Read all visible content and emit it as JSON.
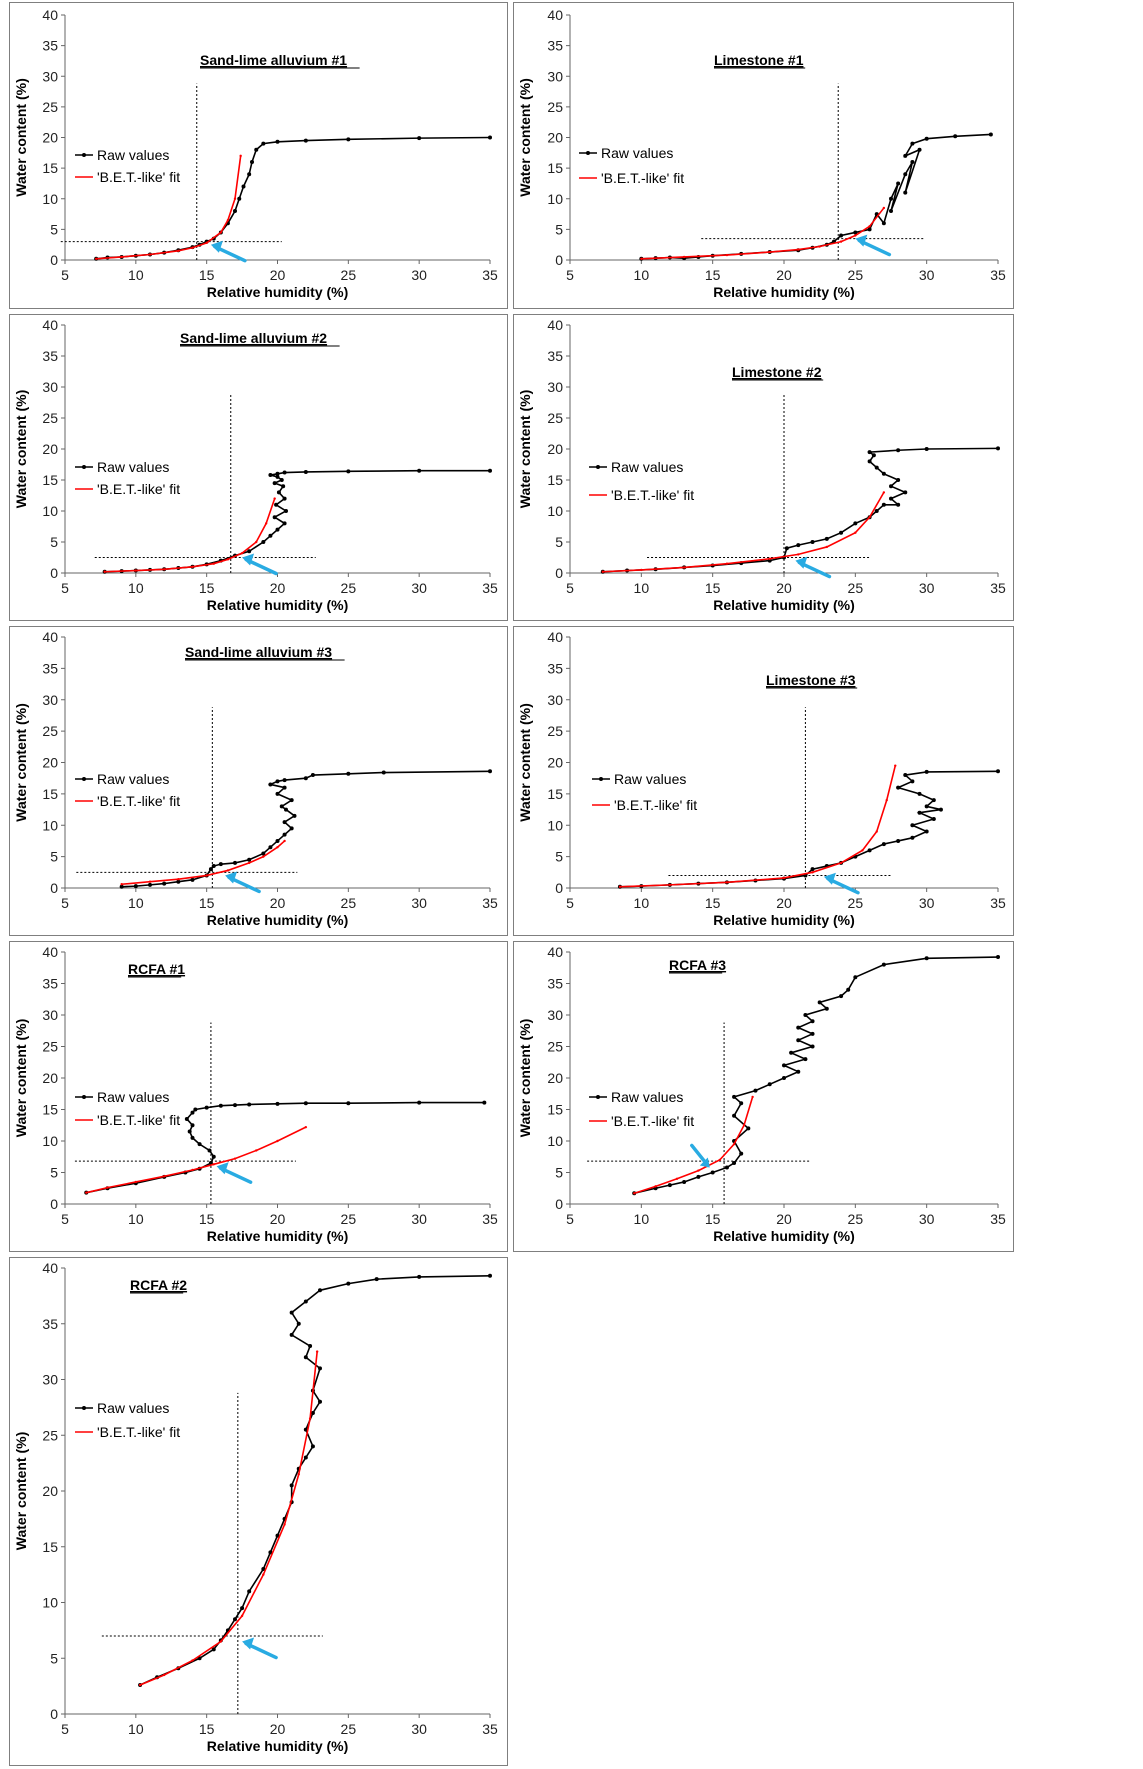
{
  "common": {
    "xlabel": "Relative humidity (%)",
    "ylabel": "Water content (%)",
    "legend": [
      "Raw values",
      "'B.E.T.-like' fit"
    ],
    "raw_color": "#000000",
    "fit_color": "#ff0000",
    "arrow_color": "#29abe2"
  },
  "chart_data": [
    {
      "type": "line",
      "title": "Sand-lime alluvium #1",
      "xlabel": "Relative humidity (%)",
      "ylabel": "Water content (%)",
      "xlim": [
        5,
        35
      ],
      "ylim": [
        0,
        40
      ],
      "xticks": [
        "5",
        "10",
        "15",
        "20",
        "25",
        "30",
        "35"
      ],
      "yticks": [
        "0",
        "5",
        "10",
        "15",
        "20",
        "25",
        "30",
        "35",
        "40"
      ],
      "series": [
        {
          "name": "Raw values",
          "x": [
            7.2,
            8,
            9,
            10,
            11,
            12,
            13,
            14,
            14.5,
            15,
            15.5,
            16,
            16.5,
            17,
            17.3,
            17.6,
            18,
            18.2,
            18.5,
            19,
            20,
            22,
            25,
            30,
            35
          ],
          "y": [
            0.2,
            0.4,
            0.5,
            0.7,
            0.9,
            1.2,
            1.6,
            2.1,
            2.5,
            3,
            3.5,
            4.5,
            6,
            8,
            10,
            12,
            14,
            16,
            18,
            19,
            19.3,
            19.5,
            19.7,
            19.9,
            20
          ]
        },
        {
          "name": "'B.E.T.-like' fit",
          "x": [
            7.2,
            9,
            11,
            13,
            14,
            15,
            16,
            16.5,
            17,
            17.4
          ],
          "y": [
            0.2,
            0.5,
            0.9,
            1.5,
            2,
            2.8,
            4.5,
            6.5,
            10,
            17
          ]
        }
      ],
      "refline_x": 14.3,
      "refline_y": 3,
      "arrow_target": [
        15.3,
        2.5
      ]
    },
    {
      "type": "line",
      "title": "Limestone #1",
      "xlabel": "Relative humidity (%)",
      "ylabel": "Water content (%)",
      "xlim": [
        5,
        35
      ],
      "ylim": [
        0,
        40
      ],
      "xticks": [
        "5",
        "10",
        "15",
        "20",
        "25",
        "30",
        "35"
      ],
      "yticks": [
        "0",
        "5",
        "10",
        "15",
        "20",
        "25",
        "30",
        "35",
        "40"
      ],
      "series": [
        {
          "name": "Raw values",
          "x": [
            10,
            11,
            12,
            13,
            14,
            15,
            17,
            19,
            21,
            22,
            23,
            23.5,
            24,
            25,
            26,
            26.5,
            27,
            27.5,
            28,
            27.5,
            28.5,
            29,
            28.5,
            29.5,
            28.5,
            29,
            30,
            32,
            34.5
          ],
          "y": [
            0.2,
            0.3,
            0.4,
            0.3,
            0.5,
            0.7,
            1,
            1.3,
            1.6,
            2,
            2.5,
            3,
            4,
            4.5,
            5,
            7.5,
            6,
            10,
            12.5,
            8,
            14,
            16,
            11,
            18,
            17,
            19,
            19.8,
            20.2,
            20.5
          ]
        },
        {
          "name": "'B.E.T.-like' fit",
          "x": [
            10,
            13,
            16,
            19,
            21,
            22.5,
            24,
            25,
            26,
            27
          ],
          "y": [
            0.2,
            0.5,
            0.8,
            1.3,
            1.7,
            2.2,
            3,
            4,
            5.5,
            8.5
          ]
        }
      ],
      "refline_x": 23.8,
      "refline_y": 3.5,
      "arrow_target": [
        25,
        3.5
      ]
    },
    {
      "type": "line",
      "title": "Sand-lime alluvium #2",
      "xlabel": "Relative humidity (%)",
      "ylabel": "Water content (%)",
      "xlim": [
        5,
        35
      ],
      "ylim": [
        0,
        40
      ],
      "xticks": [
        "5",
        "10",
        "15",
        "20",
        "25",
        "30",
        "35"
      ],
      "yticks": [
        "0",
        "5",
        "10",
        "15",
        "20",
        "25",
        "30",
        "35",
        "40"
      ],
      "series": [
        {
          "name": "Raw values",
          "x": [
            7.8,
            9,
            10,
            11,
            12,
            13,
            14,
            15,
            16,
            17,
            18,
            19,
            19.5,
            20,
            20.5,
            19.8,
            20.6,
            19.9,
            20.5,
            20.1,
            20.4,
            19.8,
            20.3,
            20,
            19.5,
            20,
            20.5,
            22,
            25,
            30,
            35
          ],
          "y": [
            0.2,
            0.3,
            0.4,
            0.5,
            0.6,
            0.8,
            1,
            1.4,
            2,
            2.8,
            3.5,
            5,
            6,
            7,
            8,
            9,
            10,
            11,
            12,
            13,
            14,
            14.5,
            15,
            15.5,
            15.8,
            16,
            16.2,
            16.3,
            16.4,
            16.5,
            16.5
          ]
        },
        {
          "name": "'B.E.T.-like' fit",
          "x": [
            7.8,
            10,
            12,
            14,
            15.5,
            16.5,
            17.5,
            18.5,
            19.2,
            19.8
          ],
          "y": [
            0.2,
            0.4,
            0.6,
            1,
            1.5,
            2.2,
            3.2,
            5,
            8,
            12
          ]
        }
      ],
      "refline_x": 16.7,
      "refline_y": 2.5,
      "arrow_target": [
        17.5,
        2.5
      ]
    },
    {
      "type": "line",
      "title": "Limestone #2",
      "xlabel": "Relative humidity (%)",
      "ylabel": "Water content (%)",
      "xlim": [
        5,
        35
      ],
      "ylim": [
        0,
        40
      ],
      "xticks": [
        "5",
        "10",
        "15",
        "20",
        "25",
        "30",
        "35"
      ],
      "yticks": [
        "0",
        "5",
        "10",
        "15",
        "20",
        "25",
        "30",
        "35",
        "40"
      ],
      "series": [
        {
          "name": "Raw values",
          "x": [
            7.3,
            9,
            11,
            13,
            15,
            17,
            19,
            20,
            20.2,
            21,
            22,
            23,
            24,
            25,
            26,
            26.5,
            27,
            28,
            27.5,
            28.5,
            27.5,
            28,
            27,
            26.5,
            26,
            26.3,
            26,
            28,
            30,
            35
          ],
          "y": [
            0.2,
            0.4,
            0.6,
            0.9,
            1.2,
            1.6,
            2,
            2.5,
            4,
            4.5,
            5,
            5.5,
            6.5,
            8,
            9,
            10,
            11,
            11,
            12,
            13,
            14,
            15,
            16,
            17,
            18,
            19,
            19.5,
            19.8,
            20,
            20.1
          ]
        },
        {
          "name": "'B.E.T.-like' fit",
          "x": [
            7.3,
            10,
            13,
            16,
            19,
            21,
            23,
            25,
            26,
            27
          ],
          "y": [
            0.2,
            0.5,
            0.9,
            1.5,
            2.3,
            3,
            4.2,
            6.5,
            9,
            13
          ]
        }
      ],
      "refline_x": 20,
      "refline_y": 2.5,
      "arrow_target": [
        20.8,
        2
      ]
    },
    {
      "type": "line",
      "title": "Sand-lime alluvium #3",
      "xlabel": "Relative humidity (%)",
      "ylabel": "Water content (%)",
      "xlim": [
        5,
        35
      ],
      "ylim": [
        0,
        40
      ],
      "xticks": [
        "5",
        "10",
        "15",
        "20",
        "25",
        "30",
        "35"
      ],
      "yticks": [
        "0",
        "5",
        "10",
        "15",
        "20",
        "25",
        "30",
        "35",
        "40"
      ],
      "series": [
        {
          "name": "Raw values",
          "x": [
            9,
            10,
            11,
            12,
            13,
            14,
            15,
            15.3,
            15.5,
            16,
            17,
            18,
            19,
            19.5,
            20,
            20.5,
            21,
            20.5,
            21.2,
            20.6,
            20.3,
            21,
            20,
            20.5,
            19.5,
            20,
            20.5,
            22,
            22.5,
            25,
            27.5,
            35
          ],
          "y": [
            0.2,
            0.3,
            0.5,
            0.7,
            1,
            1.3,
            2,
            3,
            3.5,
            3.8,
            4,
            4.5,
            5.5,
            6.5,
            7.5,
            8.5,
            9.5,
            10.5,
            11.5,
            12.5,
            13,
            14,
            15,
            16,
            16.5,
            17,
            17.2,
            17.5,
            18,
            18.2,
            18.4,
            18.6
          ]
        },
        {
          "name": "'B.E.T.-like' fit",
          "x": [
            9,
            11,
            13,
            15,
            16.5,
            18,
            19,
            20,
            20.5
          ],
          "y": [
            0.6,
            1,
            1.4,
            2,
            2.8,
            4,
            5,
            6.5,
            7.5
          ]
        }
      ],
      "refline_x": 15.4,
      "refline_y": 2.5,
      "arrow_target": [
        16.3,
        2
      ]
    },
    {
      "type": "line",
      "title": "Limestone #3",
      "xlabel": "Relative humidity (%)",
      "ylabel": "Water content (%)",
      "xlim": [
        5,
        35
      ],
      "ylim": [
        0,
        40
      ],
      "xticks": [
        "5",
        "10",
        "15",
        "20",
        "25",
        "30",
        "35"
      ],
      "yticks": [
        "0",
        "5",
        "10",
        "15",
        "20",
        "25",
        "30",
        "35",
        "40"
      ],
      "series": [
        {
          "name": "Raw values",
          "x": [
            8.5,
            10,
            12,
            14,
            16,
            18,
            20,
            21.5,
            22,
            23,
            24,
            25,
            26,
            27,
            28,
            29,
            30,
            29,
            30.5,
            29.5,
            31,
            30,
            30.5,
            29.5,
            28,
            29,
            28.5,
            30,
            35
          ],
          "y": [
            0.2,
            0.3,
            0.5,
            0.7,
            0.9,
            1.2,
            1.5,
            2,
            3,
            3.5,
            4,
            5,
            6,
            7,
            7.5,
            8,
            9,
            10,
            11,
            12,
            12.5,
            13,
            14,
            15,
            16,
            17,
            18,
            18.5,
            18.6
          ]
        },
        {
          "name": "'B.E.T.-like' fit",
          "x": [
            8.5,
            12,
            16,
            20,
            22,
            24,
            25.5,
            26.5,
            27.2,
            27.8
          ],
          "y": [
            0.2,
            0.5,
            0.9,
            1.6,
            2.5,
            4,
            6,
            9,
            14,
            19.5
          ]
        }
      ],
      "refline_x": 21.5,
      "refline_y": 2,
      "arrow_target": [
        22.8,
        1.8
      ]
    },
    {
      "type": "line",
      "title": "RCFA #1",
      "xlabel": "Relative humidity (%)",
      "ylabel": "Water content (%)",
      "xlim": [
        5,
        35
      ],
      "ylim": [
        0,
        40
      ],
      "xticks": [
        "5",
        "10",
        "15",
        "20",
        "25",
        "30",
        "35"
      ],
      "yticks": [
        "0",
        "5",
        "10",
        "15",
        "20",
        "25",
        "30",
        "35",
        "40"
      ],
      "series": [
        {
          "name": "Raw values",
          "x": [
            6.5,
            8,
            10,
            12,
            13.5,
            14.5,
            15.3,
            15.5,
            15.2,
            14.5,
            14,
            13.8,
            14,
            13.6,
            14,
            14.2,
            15,
            16,
            17,
            18,
            20,
            22,
            25,
            30,
            34.6
          ],
          "y": [
            1.8,
            2.5,
            3.3,
            4.3,
            5,
            5.6,
            6.5,
            7.5,
            8.5,
            9.5,
            10.5,
            11.5,
            12.5,
            13.5,
            14.5,
            15,
            15.3,
            15.6,
            15.7,
            15.8,
            15.9,
            16,
            16,
            16.1,
            16.1
          ]
        },
        {
          "name": "'B.E.T.-like' fit",
          "x": [
            6.5,
            8,
            10,
            12,
            14,
            15.5,
            17,
            18.5,
            20,
            22
          ],
          "y": [
            1.8,
            2.6,
            3.5,
            4.4,
            5.4,
            6.3,
            7.2,
            8.5,
            10,
            12.2
          ]
        }
      ],
      "refline_x": 15.3,
      "refline_y": 6.8,
      "arrow_target": [
        15.7,
        6
      ]
    },
    {
      "type": "line",
      "title": "RCFA #3",
      "xlabel": "Relative humidity (%)",
      "ylabel": "Water content (%)",
      "xlim": [
        5,
        35
      ],
      "ylim": [
        0,
        40
      ],
      "xticks": [
        "5",
        "10",
        "15",
        "20",
        "25",
        "30",
        "35"
      ],
      "yticks": [
        "0",
        "5",
        "10",
        "15",
        "20",
        "25",
        "30",
        "35",
        "40"
      ],
      "series": [
        {
          "name": "Raw values",
          "x": [
            9.5,
            11,
            12,
            13,
            14,
            15,
            16,
            16.5,
            17,
            16.5,
            17.5,
            16.5,
            17,
            16.5,
            18,
            19,
            20,
            21,
            20,
            21.5,
            20.5,
            22,
            21,
            22,
            21,
            22,
            21.5,
            23,
            22.5,
            24,
            24.5,
            25,
            27,
            30,
            35
          ],
          "y": [
            1.7,
            2.5,
            3,
            3.5,
            4.3,
            5,
            5.8,
            6.5,
            8,
            10,
            12,
            14,
            16,
            17,
            18,
            19,
            20,
            21,
            22,
            23,
            24,
            25,
            26,
            27,
            28,
            29,
            30,
            31,
            32,
            33,
            34,
            36,
            38,
            39,
            39.2
          ]
        },
        {
          "name": "'B.E.T.-like' fit",
          "x": [
            9.5,
            11,
            12.5,
            14,
            15.5,
            16.5,
            17.2,
            17.8
          ],
          "y": [
            1.7,
            2.8,
            4,
            5.3,
            7,
            9.5,
            12.5,
            17
          ]
        }
      ],
      "refline_x": 15.8,
      "refline_y": 6.8,
      "arrow_target": [
        14.8,
        5.8
      ]
    },
    {
      "type": "line",
      "title": "RCFA #2",
      "xlabel": "Relative humidity (%)",
      "ylabel": "Water content (%)",
      "xlim": [
        5,
        35
      ],
      "ylim": [
        0,
        40
      ],
      "xticks": [
        "5",
        "10",
        "15",
        "20",
        "25",
        "30",
        "35"
      ],
      "yticks": [
        "0",
        "5",
        "10",
        "15",
        "20",
        "25",
        "30",
        "35",
        "40"
      ],
      "series": [
        {
          "name": "Raw values",
          "x": [
            10.3,
            11.5,
            13,
            14.5,
            15.5,
            16,
            16.5,
            17,
            17.5,
            18,
            19,
            19.5,
            20,
            20.5,
            21,
            21,
            21.5,
            22,
            22.5,
            22,
            22.5,
            23,
            22.5,
            23,
            22,
            22.3,
            21,
            21.5,
            21,
            22,
            23,
            25,
            27,
            30,
            35
          ],
          "y": [
            2.6,
            3.3,
            4.1,
            5,
            5.8,
            6.6,
            7.5,
            8.5,
            9.5,
            11,
            13,
            14.5,
            16,
            17.5,
            19,
            20.5,
            22,
            23,
            24,
            25.5,
            27,
            28,
            29,
            31,
            32,
            33,
            34,
            35,
            36,
            37,
            38,
            38.6,
            39,
            39.2,
            39.3
          ]
        },
        {
          "name": "'B.E.T.-like' fit",
          "x": [
            10.3,
            12,
            14,
            16,
            17.5,
            19,
            20.5,
            21.5,
            22.3,
            22.8
          ],
          "y": [
            2.6,
            3.5,
            4.8,
            6.5,
            8.8,
            12.5,
            17,
            21.5,
            26.5,
            32.5
          ]
        }
      ],
      "refline_x": 17.2,
      "refline_y": 7,
      "arrow_target": [
        17.5,
        6.5
      ]
    }
  ]
}
